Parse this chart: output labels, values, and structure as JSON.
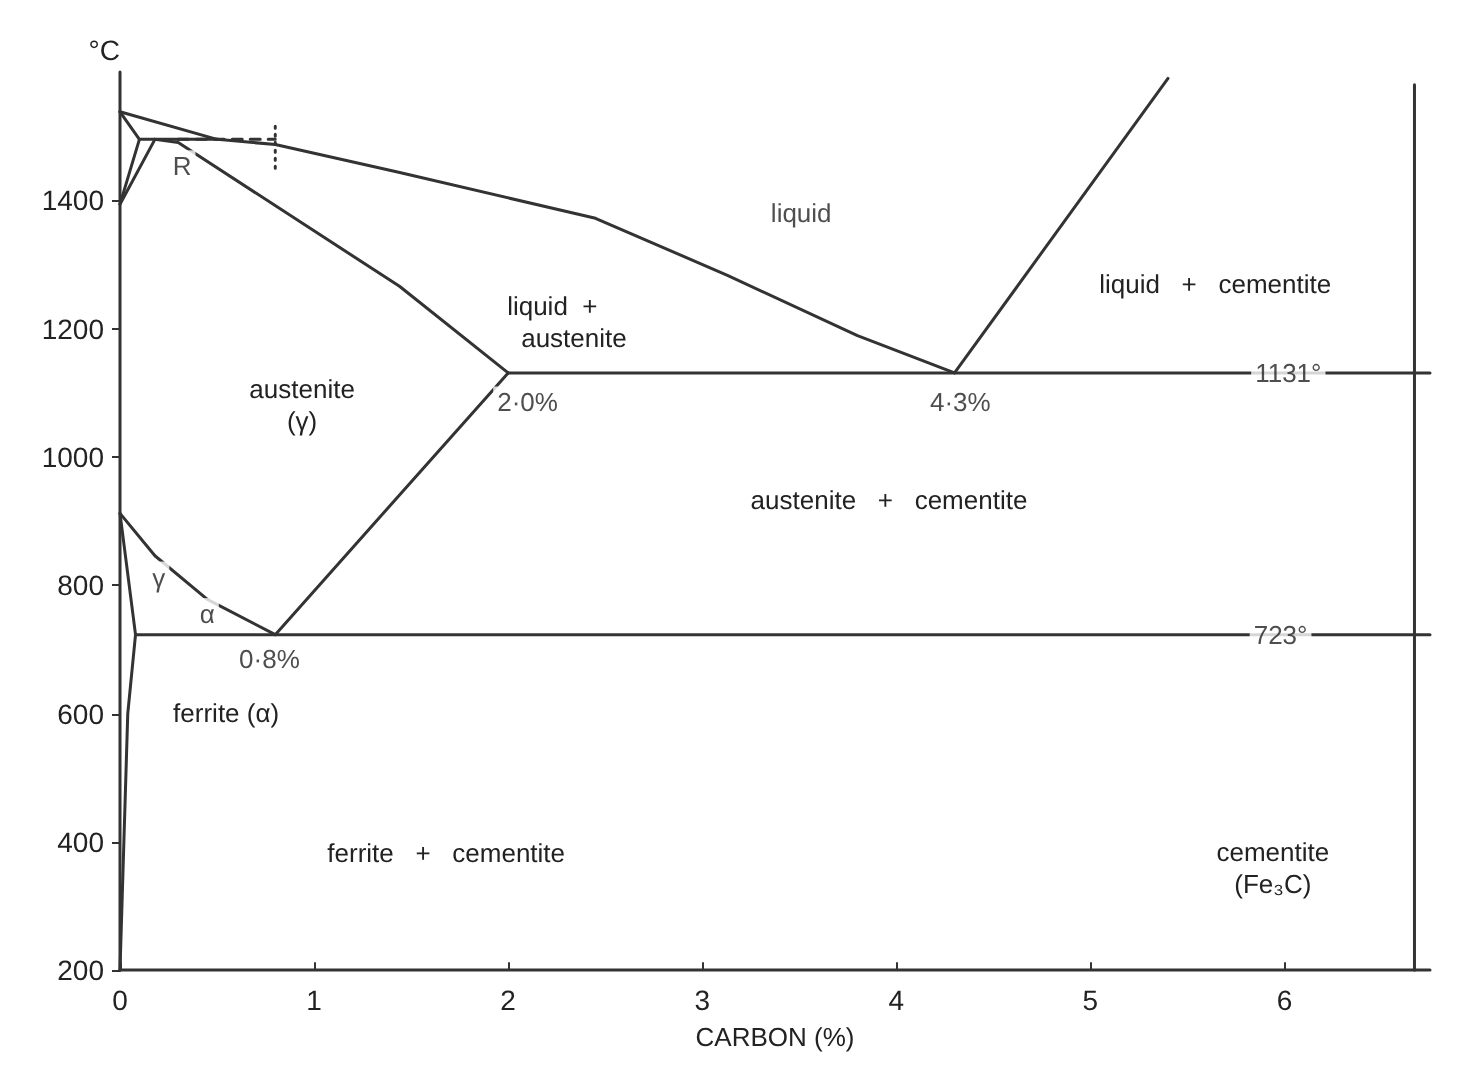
{
  "chart_data": {
    "type": "line",
    "xlabel": "CARBON (%)",
    "ylabel": "°C",
    "xlim": [
      0,
      6.75
    ],
    "ylim": [
      200,
      1600
    ],
    "xticks": [
      0,
      1,
      2,
      3,
      4,
      5,
      6
    ],
    "yticks": [
      200,
      400,
      600,
      800,
      1000,
      1200,
      1400
    ],
    "grid": false,
    "marker": "none",
    "line_style": "solid",
    "series": [
      {
        "color": "#333333",
        "x": [
          0,
          0.5,
          0.8,
          1.43,
          2.45,
          3.13,
          3.8,
          4.3
        ],
        "values": [
          1538,
          1495,
          1487,
          1444,
          1372,
          1283,
          1189,
          1131
        ]
      },
      {
        "color": "#333333",
        "x": [
          4.3,
          5.4
        ],
        "values": [
          1131,
          1590
        ]
      },
      {
        "color": "#333333",
        "x": [
          0.18,
          0.3,
          1.44,
          2.0
        ],
        "values": [
          1495,
          1490,
          1266,
          1131
        ]
      },
      {
        "color": "#333333",
        "x": [
          2.0,
          6.75
        ],
        "values": [
          1131,
          1131
        ]
      },
      {
        "color": "#333333",
        "x": [
          0.08,
          6.75
        ],
        "values": [
          723,
          723
        ]
      },
      {
        "color": "#333333",
        "x": [
          0.8,
          2.0
        ],
        "values": [
          723,
          1131
        ]
      },
      {
        "color": "#333333",
        "x": [
          0,
          0.18,
          0.45,
          0.8
        ],
        "values": [
          912,
          846,
          778,
          723
        ]
      },
      {
        "color": "#333333",
        "x": [
          0,
          0.08,
          0.04,
          0.02,
          0
        ],
        "values": [
          912,
          723,
          600,
          400,
          200
        ]
      },
      {
        "color": "#333333",
        "x": [
          0,
          0.1,
          0
        ],
        "values": [
          1538,
          1495,
          1394
        ]
      },
      {
        "color": "#333333",
        "x": [
          0.1,
          0.5
        ],
        "values": [
          1495,
          1495
        ]
      },
      {
        "color": "#333333",
        "x": [
          0.18,
          0
        ],
        "values": [
          1495,
          1394
        ]
      },
      {
        "color": "#333333",
        "x": [
          0.3,
          0.8
        ],
        "values": [
          1495,
          1495
        ],
        "line_style": "dashed"
      },
      {
        "color": "#333333",
        "x": [
          0.8,
          0.8
        ],
        "values": [
          1450,
          1520
        ],
        "line_style": "dotted"
      },
      {
        "color": "#333333",
        "x": [
          6.67,
          6.67
        ],
        "values": [
          200,
          1580
        ]
      }
    ],
    "annotations": [
      {
        "text": "liquid",
        "x": 3.51,
        "y": 1381
      },
      "liquid  +\n      austenite",
      "liquid   +   cementite",
      "austenite\n(γ)",
      {
        "text": "2·0%",
        "x": 2.1,
        "y": 1085
      },
      {
        "text": "4·3%",
        "x": 4.33,
        "y": 1085
      },
      {
        "text": "1131°",
        "x": 6.02,
        "y": 1131
      },
      "austenite   +   cementite",
      {
        "text": "γ",
        "x": 0.2,
        "y": 812
      },
      {
        "text": "α",
        "x": 0.45,
        "y": 755
      },
      {
        "text": "0·8%",
        "x": 0.77,
        "y": 685
      },
      {
        "text": "723°",
        "x": 5.98,
        "y": 723
      },
      "ferrite (α)",
      "ferrite   +   cementite",
      "cementite\n(Fe₃C)",
      {
        "text": "R",
        "x": 0.32,
        "y": 1453
      }
    ]
  }
}
